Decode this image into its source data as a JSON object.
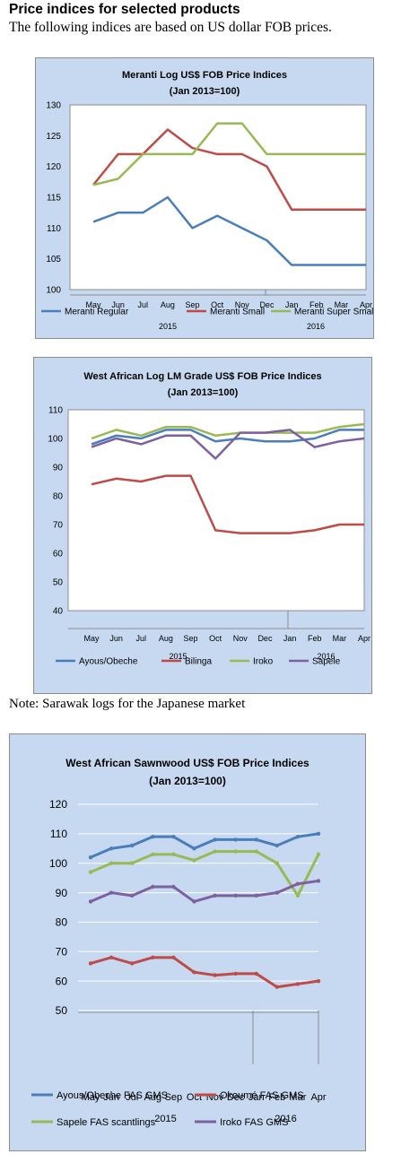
{
  "header": {
    "heading": "Price indices for selected products",
    "intro": "The following indices are based on US dollar FOB prices."
  },
  "note": "Note: Sarawak logs for the Japanese market",
  "chart_data": [
    {
      "type": "line",
      "title": "Meranti Log US$ FOB Price Indices",
      "subtitle": "(Jan 2013=100)",
      "categories": [
        "May",
        "Jun",
        "Jul",
        "Aug",
        "Sep",
        "Oct",
        "Nov",
        "Dec",
        "Jan",
        "Feb",
        "Mar",
        "Apr"
      ],
      "year_labels": [
        "2015",
        "2016"
      ],
      "ylim": [
        100,
        130
      ],
      "yticks": [
        100,
        105,
        110,
        115,
        120,
        125,
        130
      ],
      "grid": false,
      "legend": "bottom",
      "series": [
        {
          "name": "Meranti Regular",
          "color": "#4a7ebb",
          "values": [
            111,
            112.5,
            112.5,
            115,
            110,
            112,
            110,
            108,
            104,
            104,
            104,
            104
          ]
        },
        {
          "name": "Meranti Small",
          "color": "#be4b48",
          "values": [
            117,
            122,
            122,
            126,
            123,
            122,
            122,
            120,
            113,
            113,
            113,
            113
          ]
        },
        {
          "name": "Meranti Super Small",
          "color": "#98b954",
          "values": [
            117,
            118,
            122,
            122,
            122,
            127,
            127,
            122,
            122,
            122,
            122,
            122
          ]
        }
      ]
    },
    {
      "type": "line",
      "title": "West African Log LM Grade US$ FOB Price Indices",
      "subtitle": "(Jan 2013=100)",
      "categories": [
        "May",
        "Jun",
        "Jul",
        "Aug",
        "Sep",
        "Oct",
        "Nov",
        "Dec",
        "Jan",
        "Feb",
        "Mar",
        "Apr"
      ],
      "year_labels": [
        "2015",
        "2016"
      ],
      "ylim": [
        40,
        110
      ],
      "yticks": [
        40,
        50,
        60,
        70,
        80,
        90,
        100,
        110
      ],
      "grid": false,
      "legend": "bottom",
      "series": [
        {
          "name": "Ayous/Obeche",
          "color": "#4a7ebb",
          "values": [
            98,
            101,
            100,
            103,
            103,
            99,
            100,
            99,
            99,
            100,
            103,
            103
          ]
        },
        {
          "name": "Bilinga",
          "color": "#be4b48",
          "values": [
            84,
            86,
            85,
            87,
            87,
            68,
            67,
            67,
            67,
            68,
            70,
            70
          ]
        },
        {
          "name": "Iroko",
          "color": "#98b954",
          "values": [
            100,
            103,
            101,
            104,
            104,
            101,
            102,
            102,
            102,
            102,
            104,
            105
          ]
        },
        {
          "name": "Sapele",
          "color": "#7d60a0",
          "values": [
            97,
            100,
            98,
            101,
            101,
            93,
            102,
            102,
            103,
            97,
            99,
            100
          ]
        }
      ]
    },
    {
      "type": "line",
      "title": "West African Sawnwood US$ FOB Price Indices",
      "subtitle": "(Jan 2013=100)",
      "categories": [
        "May",
        "Jun",
        "Jul",
        "Aug",
        "Sep",
        "Oct",
        "Nov",
        "Dec",
        "Jan",
        "Feb",
        "Mar",
        "Apr"
      ],
      "year_labels": [
        "2015",
        "2016"
      ],
      "ylim": [
        50,
        120
      ],
      "yticks": [
        50,
        60,
        70,
        80,
        90,
        100,
        110,
        120
      ],
      "grid": true,
      "legend": "bottom",
      "series": [
        {
          "name": "Ayous/Obeche FAS GMS",
          "color": "#4a7ebb",
          "values": [
            102,
            105,
            106,
            109,
            109,
            105,
            108,
            108,
            108,
            106,
            109,
            110
          ]
        },
        {
          "name": "Okoumé FAS GMS",
          "color": "#be4b48",
          "values": [
            66,
            68,
            66,
            68,
            68,
            63,
            62,
            62.5,
            62.5,
            58,
            59,
            60
          ]
        },
        {
          "name": "Sapele FAS scantlings",
          "color": "#98b954",
          "values": [
            97,
            100,
            100,
            103,
            103,
            101,
            104,
            104,
            104,
            100,
            89,
            103
          ]
        },
        {
          "name": "Iroko FAS GMS",
          "color": "#7d60a0",
          "values": [
            87,
            90,
            89,
            92,
            92,
            87,
            89,
            89,
            89,
            90,
            93,
            94
          ]
        }
      ]
    }
  ]
}
